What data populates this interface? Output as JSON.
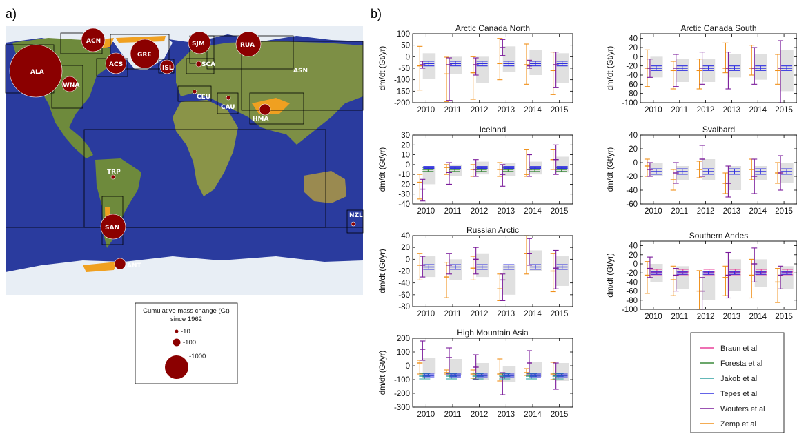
{
  "panel_labels": {
    "a": "a)",
    "b": "b)"
  },
  "colors": {
    "ocean": "#2a3b9e",
    "land": "#6e8a3c",
    "ice": "#e8eef5",
    "glacier": "#f0a020",
    "bubble": "#8b0000",
    "box": "#000000",
    "band": "#e0e0e0",
    "Braun et al": "#e8409a",
    "Foresta et al": "#3a8a3a",
    "Jakob et al": "#30a0a0",
    "Tepes et al": "#3030e0",
    "Wouters et al": "#7a1a9a",
    "Zemp et al": "#f0901a"
  },
  "map": {
    "regions": [
      {
        "code": "ALA",
        "size": "large"
      },
      {
        "code": "WNA",
        "size": "small"
      },
      {
        "code": "ACN",
        "size": "medium"
      },
      {
        "code": "ACS",
        "size": "medium"
      },
      {
        "code": "GRE",
        "size": "large"
      },
      {
        "code": "ISL",
        "size": "small"
      },
      {
        "code": "SJM",
        "size": "medium"
      },
      {
        "code": "SCA",
        "size": "small"
      },
      {
        "code": "RUA",
        "size": "medium"
      },
      {
        "code": "ASN",
        "size": "small"
      },
      {
        "code": "CEU",
        "size": "small"
      },
      {
        "code": "CAU",
        "size": "small"
      },
      {
        "code": "HMA",
        "size": "small"
      },
      {
        "code": "TRP",
        "size": "small"
      },
      {
        "code": "SAN",
        "size": "medium"
      },
      {
        "code": "ANT",
        "size": "small"
      },
      {
        "code": "NZL",
        "size": "small"
      }
    ],
    "legend": {
      "title_line1": "Cumulative mass change (Gt)",
      "title_line2": "since 1962",
      "items": [
        "-10",
        "-100",
        "-1000"
      ]
    }
  },
  "chart_data": [
    {
      "type": "errorbar",
      "title": "Arctic Canada North",
      "ylabel": "dm/dt (Gt/yr)",
      "ylim": [
        -200,
        100
      ],
      "yticks": [
        -200,
        -150,
        -100,
        -50,
        0,
        50,
        100
      ],
      "categories": [
        "2010",
        "2011",
        "2012",
        "2013",
        "2014",
        "2015"
      ],
      "band": [
        {
          "low": -95,
          "high": 15
        },
        {
          "low": -75,
          "high": 0
        },
        {
          "low": -115,
          "high": 0
        },
        {
          "low": -65,
          "high": 45
        },
        {
          "low": -80,
          "high": 30
        },
        {
          "low": -115,
          "high": 15
        }
      ],
      "series": [
        {
          "name": "Zemp et al",
          "values": [
            -40,
            -75,
            -70,
            -30,
            -35,
            -60
          ],
          "err_low": [
            -145,
            -195,
            -185,
            -100,
            -120,
            -165
          ],
          "err_high": [
            45,
            -2,
            0,
            80,
            55,
            20
          ]
        },
        {
          "name": "Wouters et al",
          "values": [
            -35,
            -35,
            -35,
            40,
            -40,
            -35
          ],
          "err_low": [
            -50,
            -190,
            -80,
            5,
            -50,
            -135
          ],
          "err_high": [
            -20,
            -5,
            -5,
            75,
            -15,
            20
          ]
        },
        {
          "name": "Tepes et al",
          "values": [
            -30,
            -30,
            -30,
            -30,
            -30,
            -30
          ],
          "err_low": [
            -40,
            -40,
            -40,
            -40,
            -40,
            -40
          ],
          "err_high": [
            -20,
            -20,
            -20,
            -20,
            -20,
            -20
          ]
        }
      ]
    },
    {
      "type": "errorbar",
      "title": "Arctic Canada South",
      "ylabel": "dm/dt (Gt/yr)",
      "ylim": [
        -100,
        50
      ],
      "yticks": [
        -100,
        -80,
        -60,
        -40,
        -20,
        0,
        20,
        40
      ],
      "categories": [
        "2010",
        "2011",
        "2012",
        "2013",
        "2014",
        "2015"
      ],
      "band": [
        {
          "low": -45,
          "high": 0
        },
        {
          "low": -55,
          "high": -5
        },
        {
          "low": -55,
          "high": -5
        },
        {
          "low": -45,
          "high": 5
        },
        {
          "low": -50,
          "high": 5
        },
        {
          "low": -75,
          "high": 15
        }
      ],
      "series": [
        {
          "name": "Zemp et al",
          "values": [
            -25,
            -30,
            -30,
            -25,
            -25,
            -30
          ],
          "err_low": [
            -65,
            -70,
            -70,
            -35,
            -40,
            -60
          ],
          "err_high": [
            15,
            -10,
            -5,
            30,
            25,
            5
          ]
        },
        {
          "name": "Wouters et al",
          "values": [
            -25,
            -25,
            -25,
            -25,
            -25,
            -25
          ],
          "err_low": [
            -45,
            -65,
            -60,
            -70,
            -60,
            -100
          ],
          "err_high": [
            -5,
            5,
            10,
            10,
            20,
            35
          ]
        },
        {
          "name": "Tepes et al",
          "values": [
            -25,
            -25,
            -25,
            -25,
            -25,
            -25
          ],
          "err_low": [
            -30,
            -30,
            -30,
            -30,
            -30,
            -30
          ],
          "err_high": [
            -20,
            -20,
            -20,
            -20,
            -20,
            -20
          ]
        }
      ]
    },
    {
      "type": "errorbar",
      "title": "Iceland",
      "ylabel": "dm/dt (Gt/yr)",
      "ylim": [
        -40,
        30
      ],
      "yticks": [
        -40,
        -30,
        -20,
        -10,
        0,
        10,
        20,
        30
      ],
      "categories": [
        "2010",
        "2011",
        "2012",
        "2013",
        "2014",
        "2015"
      ],
      "band": [
        {
          "low": -20,
          "high": -2
        },
        {
          "low": -12,
          "high": 0
        },
        {
          "low": -10,
          "high": 3
        },
        {
          "low": -12,
          "high": 2
        },
        {
          "low": -10,
          "high": 3
        },
        {
          "low": -8,
          "high": 8
        }
      ],
      "series": [
        {
          "name": "Zemp et al",
          "values": [
            -18,
            -3,
            -5,
            -5,
            -10,
            5
          ],
          "err_low": [
            -35,
            -10,
            -12,
            -12,
            -12,
            -5
          ],
          "err_high": [
            -10,
            0,
            0,
            2,
            15,
            15
          ]
        },
        {
          "name": "Wouters et al",
          "values": [
            -25,
            -8,
            -5,
            -10,
            -5,
            5
          ],
          "err_low": [
            -37,
            -20,
            -12,
            -22,
            -12,
            -10
          ],
          "err_high": [
            -15,
            2,
            5,
            0,
            10,
            20
          ]
        },
        {
          "name": "Foresta et al",
          "values": [
            -5,
            -5,
            -5,
            -5,
            -5,
            -5
          ],
          "err_low": [
            -7,
            -7,
            -7,
            -7,
            -7,
            -7
          ],
          "err_high": [
            -3,
            -3,
            -3,
            -3,
            -3,
            -3
          ]
        },
        {
          "name": "Tepes et al",
          "values": [
            -3,
            -3,
            -3,
            -3,
            -3,
            -3
          ],
          "err_low": [
            -4,
            -4,
            -4,
            -4,
            -4,
            -4
          ],
          "err_high": [
            -2,
            -2,
            -2,
            -2,
            -2,
            -2
          ]
        }
      ]
    },
    {
      "type": "errorbar",
      "title": "Svalbard",
      "ylabel": "dm/dt (Gt/yr)",
      "ylim": [
        -60,
        40
      ],
      "yticks": [
        -60,
        -40,
        -20,
        0,
        20,
        40
      ],
      "categories": [
        "2010",
        "2011",
        "2012",
        "2013",
        "2014",
        "2015"
      ],
      "band": [
        {
          "low": -20,
          "high": 0
        },
        {
          "low": -25,
          "high": -5
        },
        {
          "low": -25,
          "high": 5
        },
        {
          "low": -40,
          "high": -5
        },
        {
          "low": -25,
          "high": -5
        },
        {
          "low": -30,
          "high": 0
        }
      ],
      "series": [
        {
          "name": "Zemp et al",
          "values": [
            -5,
            -25,
            -10,
            -30,
            -10,
            -15
          ],
          "err_low": [
            -20,
            -40,
            -22,
            -45,
            -25,
            -30
          ],
          "err_high": [
            5,
            -10,
            2,
            -15,
            5,
            0
          ]
        },
        {
          "name": "Wouters et al",
          "values": [
            -10,
            -15,
            5,
            -30,
            -20,
            -15
          ],
          "err_low": [
            -20,
            -30,
            -20,
            -50,
            -45,
            -40
          ],
          "err_high": [
            0,
            0,
            25,
            -5,
            5,
            10
          ]
        },
        {
          "name": "Tepes et al",
          "values": [
            -13,
            -13,
            -13,
            -13,
            -13,
            -13
          ],
          "err_low": [
            -17,
            -17,
            -17,
            -17,
            -17,
            -17
          ],
          "err_high": [
            -9,
            -9,
            -9,
            -9,
            -9,
            -9
          ]
        }
      ]
    },
    {
      "type": "errorbar",
      "title": "Russian Arctic",
      "ylabel": "dm/dt (Gt/yr)",
      "ylim": [
        -80,
        40
      ],
      "yticks": [
        -80,
        -60,
        -40,
        -20,
        0,
        20,
        40
      ],
      "categories": [
        "2010",
        "2011",
        "2012",
        "2013",
        "2014",
        "2015"
      ],
      "band": [
        {
          "low": -30,
          "high": 5
        },
        {
          "low": -35,
          "high": 0
        },
        {
          "low": -30,
          "high": 10
        },
        {
          "low": -60,
          "high": -10
        },
        {
          "low": -20,
          "high": 15
        },
        {
          "low": -45,
          "high": 5
        }
      ],
      "series": [
        {
          "name": "Zemp et al",
          "values": [
            -10,
            -30,
            -15,
            -50,
            10,
            -20
          ],
          "err_low": [
            -35,
            -65,
            -35,
            -70,
            -25,
            -55
          ],
          "err_high": [
            10,
            -5,
            5,
            -25,
            40,
            10
          ]
        },
        {
          "name": "Wouters et al",
          "values": [
            -10,
            -10,
            0,
            -35,
            10,
            -15
          ],
          "err_low": [
            -30,
            -25,
            -25,
            -70,
            -10,
            -50
          ],
          "err_high": [
            5,
            10,
            20,
            -25,
            35,
            15
          ]
        },
        {
          "name": "Tepes et al",
          "values": [
            -13,
            -13,
            -13,
            -13,
            -13,
            -13
          ],
          "err_low": [
            -17,
            -17,
            -17,
            -17,
            -17,
            -17
          ],
          "err_high": [
            -9,
            -9,
            -9,
            -9,
            -9,
            -9
          ]
        }
      ]
    },
    {
      "type": "errorbar",
      "title": "Southern Andes",
      "ylabel": "dm/dt (Gt/yr)",
      "ylim": [
        -100,
        50
      ],
      "yticks": [
        -100,
        -80,
        -60,
        -40,
        -20,
        0,
        20,
        40
      ],
      "categories": [
        "2010",
        "2011",
        "2012",
        "2013",
        "2014",
        "2015"
      ],
      "band": [
        {
          "low": -40,
          "high": 0
        },
        {
          "low": -55,
          "high": -5
        },
        {
          "low": -80,
          "high": -15
        },
        {
          "low": -60,
          "high": 10
        },
        {
          "low": -50,
          "high": 10
        },
        {
          "low": -55,
          "high": -5
        }
      ],
      "series": [
        {
          "name": "Zemp et al",
          "values": [
            -25,
            -35,
            -60,
            -30,
            -25,
            -40
          ],
          "err_low": [
            -65,
            -70,
            -100,
            -70,
            -75,
            -85
          ],
          "err_high": [
            5,
            -5,
            -15,
            -5,
            10,
            -10
          ]
        },
        {
          "name": "Wouters et al",
          "values": [
            -10,
            -25,
            -60,
            -25,
            0,
            -25
          ],
          "err_low": [
            -30,
            -60,
            -100,
            -75,
            -40,
            -55
          ],
          "err_high": [
            15,
            -10,
            -30,
            25,
            35,
            -5
          ]
        },
        {
          "name": "Braun et al",
          "values": [
            -18,
            -18,
            -18,
            -18,
            -18,
            -18
          ],
          "err_low": [
            -24,
            -24,
            -24,
            -24,
            -24,
            -24
          ],
          "err_high": [
            -12,
            -12,
            -12,
            -12,
            -12,
            -12
          ]
        },
        {
          "name": "Tepes et al",
          "values": [
            -20,
            -20,
            -20,
            -20,
            -20,
            -20
          ],
          "err_low": [
            -23,
            -23,
            -23,
            -23,
            -23,
            -23
          ],
          "err_high": [
            -17,
            -17,
            -17,
            -17,
            -17,
            -17
          ]
        }
      ]
    },
    {
      "type": "errorbar",
      "title": "High Mountain Asia",
      "ylabel": "dm/dt (Gt/yr)",
      "ylim": [
        -300,
        200
      ],
      "yticks": [
        -300,
        -200,
        -100,
        0,
        100,
        200
      ],
      "categories": [
        "2010",
        "2011",
        "2012",
        "2013",
        "2014",
        "2015"
      ],
      "band": [
        {
          "low": -60,
          "high": 60
        },
        {
          "low": -70,
          "high": 50
        },
        {
          "low": -100,
          "high": 20
        },
        {
          "low": -120,
          "high": 0
        },
        {
          "low": -80,
          "high": 30
        },
        {
          "low": -110,
          "high": 20
        }
      ],
      "series": [
        {
          "name": "Zemp et al",
          "values": [
            20,
            -50,
            -60,
            -60,
            -50,
            -60
          ],
          "err_low": [
            -60,
            -60,
            -90,
            -110,
            -70,
            -100
          ],
          "err_high": [
            40,
            -30,
            -30,
            50,
            -20,
            25
          ]
        },
        {
          "name": "Wouters et al",
          "values": [
            120,
            60,
            -10,
            -80,
            20,
            -70
          ],
          "err_low": [
            40,
            -60,
            -100,
            -210,
            -60,
            -170
          ],
          "err_high": [
            180,
            130,
            80,
            -50,
            110,
            20
          ]
        },
        {
          "name": "Foresta et al",
          "values": [
            -70,
            -70,
            -70,
            -70,
            -70,
            -70
          ],
          "err_low": [
            -80,
            -80,
            -80,
            -80,
            -80,
            -80
          ],
          "err_high": [
            -60,
            -60,
            -60,
            -60,
            -60,
            -60
          ]
        },
        {
          "name": "Jakob et al",
          "values": [
            -75,
            -75,
            -75,
            -75,
            -75,
            -75
          ],
          "err_low": [
            -95,
            -95,
            -95,
            -95,
            -95,
            -95
          ],
          "err_high": [
            -55,
            -55,
            -55,
            -55,
            -55,
            -55
          ]
        },
        {
          "name": "Tepes et al",
          "values": [
            -70,
            -70,
            -70,
            -70,
            -70,
            -70
          ],
          "err_low": [
            -80,
            -80,
            -80,
            -80,
            -80,
            -80
          ],
          "err_high": [
            -60,
            -60,
            -60,
            -60,
            -60,
            -60
          ]
        }
      ]
    }
  ],
  "legend": {
    "items": [
      "Braun et al",
      "Foresta et al",
      "Jakob et al",
      "Tepes et al",
      "Wouters et al",
      "Zemp et al"
    ]
  }
}
